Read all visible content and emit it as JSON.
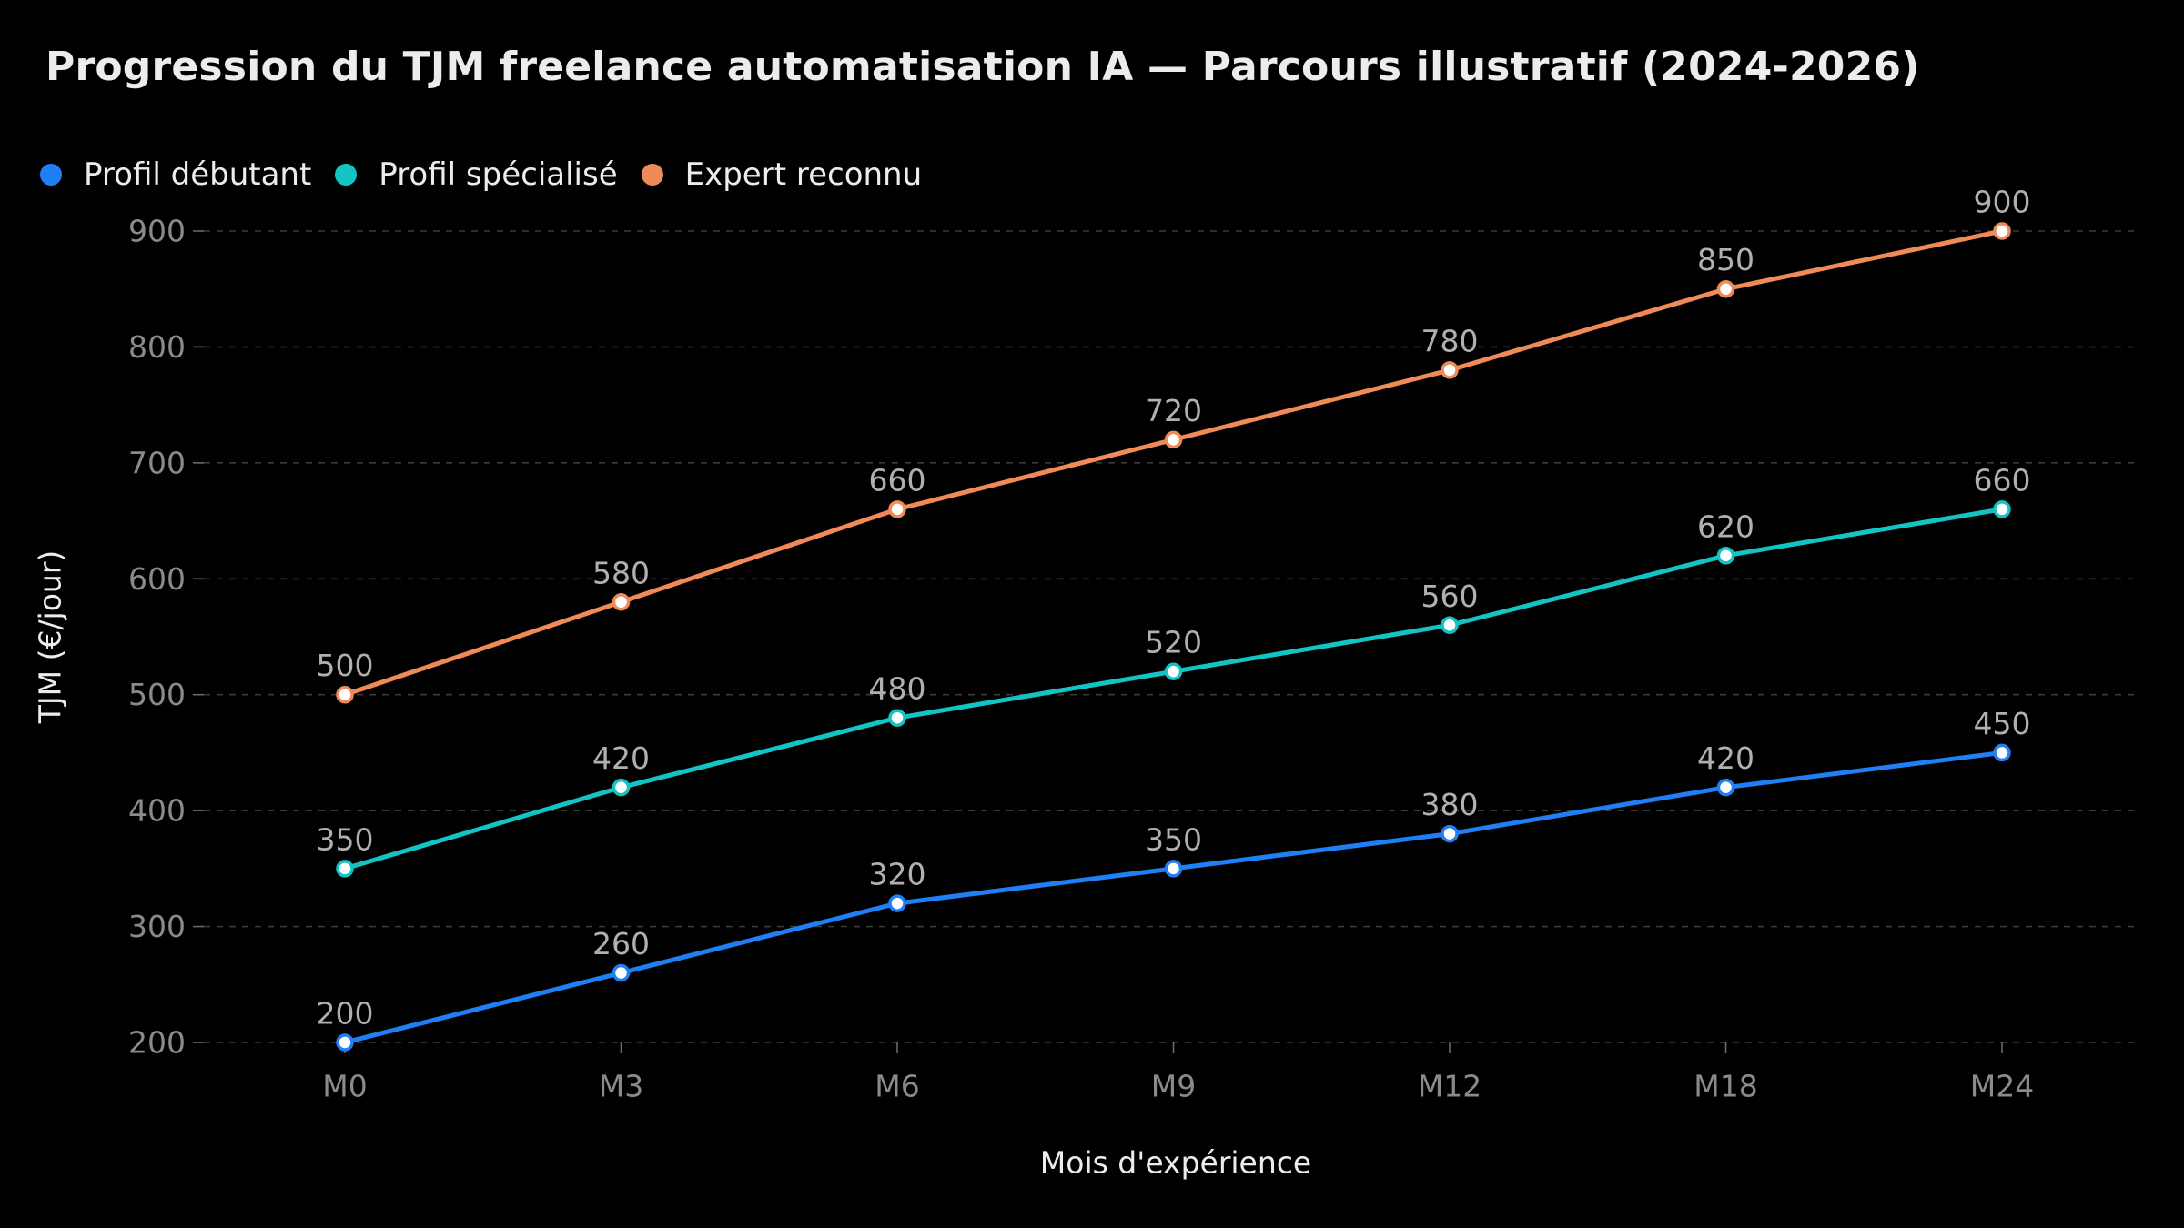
{
  "chart_data": {
    "type": "line",
    "title": "Progression du TJM freelance automatisation IA — Parcours illustratif (2024-2026)",
    "xlabel": "Mois d'expérience",
    "ylabel": "TJM (€/jour)",
    "categories": [
      "M0",
      "M3",
      "M6",
      "M9",
      "M12",
      "M18",
      "M24"
    ],
    "ylim": [
      200,
      900
    ],
    "yticks": [
      200,
      300,
      400,
      500,
      600,
      700,
      800,
      900
    ],
    "grid": "horizontal-dashed",
    "legend_position": "top-left",
    "series": [
      {
        "name": "Profil débutant",
        "color": "#1f7ff5",
        "values": [
          200,
          260,
          320,
          350,
          380,
          420,
          450
        ]
      },
      {
        "name": "Profil spécialisé",
        "color": "#13c4c4",
        "values": [
          350,
          420,
          480,
          520,
          560,
          620,
          660
        ]
      },
      {
        "name": "Expert reconnu",
        "color": "#f08a57",
        "values": [
          500,
          580,
          660,
          720,
          780,
          850,
          900
        ]
      }
    ]
  }
}
